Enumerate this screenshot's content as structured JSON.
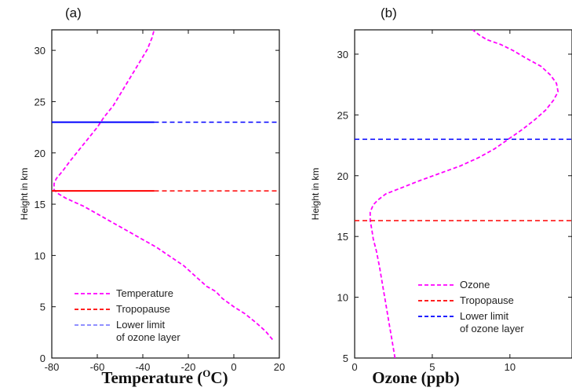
{
  "chart_data": [
    {
      "panel_label": "(a)",
      "type": "line",
      "xlabel_main": "Temperature (",
      "xlabel_sup": "O",
      "xlabel_tail": "C)",
      "ylabel": "Height in km",
      "xlim": [
        -80,
        20
      ],
      "ylim": [
        0,
        32
      ],
      "xticks": [
        -80,
        -60,
        -40,
        -20,
        0,
        20
      ],
      "yticks": [
        0,
        5,
        10,
        15,
        20,
        25,
        30
      ],
      "grid": false,
      "legend_position": "bottom-left",
      "series": [
        {
          "name": "Temperature",
          "color": "#ff00ff",
          "x": [
            17,
            14,
            10,
            5,
            0,
            -5,
            -8,
            -12,
            -15,
            -18,
            -22,
            -26,
            -30,
            -34,
            -38,
            -42,
            -46,
            -50,
            -54,
            -58,
            -62,
            -66,
            -70,
            -74,
            -77,
            -79,
            -79,
            -78,
            -75,
            -72,
            -68,
            -64,
            -60,
            -57,
            -53,
            -50,
            -47,
            -44,
            -41,
            -38,
            -36,
            -35
          ],
          "y": [
            1.8,
            2.6,
            3.4,
            4.3,
            5.0,
            5.8,
            6.5,
            7.0,
            7.6,
            8.2,
            9.0,
            9.6,
            10.2,
            10.8,
            11.3,
            11.8,
            12.3,
            12.8,
            13.3,
            13.8,
            14.3,
            14.8,
            15.2,
            15.6,
            16.0,
            16.4,
            17.0,
            17.5,
            18.3,
            19.2,
            20.3,
            21.4,
            22.5,
            23.5,
            24.6,
            25.7,
            26.8,
            27.9,
            29.0,
            30.1,
            31.2,
            32.0
          ]
        },
        {
          "name": "Tropopause",
          "color": "#ff0000",
          "y_value": 16.3,
          "solid_until_x": -35
        },
        {
          "name": "Lower limit of ozone layer",
          "color": "#0000ff",
          "y_value": 23,
          "solid_until_x": -35
        }
      ],
      "legend": [
        {
          "color": "#ff00ff",
          "lines": [
            "Temperature"
          ]
        },
        {
          "color": "#ff0000",
          "lines": [
            "Tropopause"
          ]
        },
        {
          "color": "#8080ff",
          "lines": [
            "Lower limit",
            "of ozone layer"
          ]
        }
      ]
    },
    {
      "panel_label": "(b)",
      "type": "line",
      "xlabel_main": "Ozone (ppb)",
      "ylabel": "Height in km",
      "xlim": [
        0,
        14
      ],
      "ylim": [
        5,
        32
      ],
      "xticks": [
        0,
        5,
        10
      ],
      "yticks": [
        5,
        10,
        15,
        20,
        25,
        30
      ],
      "grid": false,
      "legend_position": "bottom-right",
      "series": [
        {
          "name": "Ozone",
          "color": "#ff00ff",
          "x": [
            2.6,
            2.4,
            2.2,
            2.0,
            1.8,
            1.6,
            1.4,
            1.2,
            1.1,
            1.0,
            1.0,
            1.2,
            1.5,
            2.0,
            3.0,
            4.2,
            5.5,
            6.8,
            8.0,
            9.0,
            9.9,
            10.8,
            11.6,
            12.3,
            12.8,
            13.1,
            13.0,
            12.6,
            12.0,
            11.0,
            10.2,
            9.4,
            8.5,
            8.0,
            7.6
          ],
          "y": [
            5.0,
            6.5,
            8.0,
            9.5,
            11.0,
            12.5,
            13.8,
            14.8,
            15.6,
            16.3,
            17.0,
            17.6,
            18.0,
            18.5,
            19.0,
            19.6,
            20.2,
            20.8,
            21.5,
            22.2,
            23.0,
            23.8,
            24.6,
            25.4,
            26.2,
            26.9,
            27.6,
            28.3,
            29.0,
            29.7,
            30.3,
            30.8,
            31.2,
            31.6,
            32.0
          ]
        },
        {
          "name": "Tropopause",
          "color": "#ff0000",
          "y_value": 16.3
        },
        {
          "name": "Lower limit of ozone layer",
          "color": "#0000ff",
          "y_value": 23
        }
      ],
      "legend": [
        {
          "color": "#ff00ff",
          "lines": [
            "Ozone"
          ]
        },
        {
          "color": "#ff0000",
          "lines": [
            "Tropopause"
          ]
        },
        {
          "color": "#0000ff",
          "lines": [
            "Lower limit",
            "of ozone layer"
          ]
        }
      ]
    }
  ]
}
